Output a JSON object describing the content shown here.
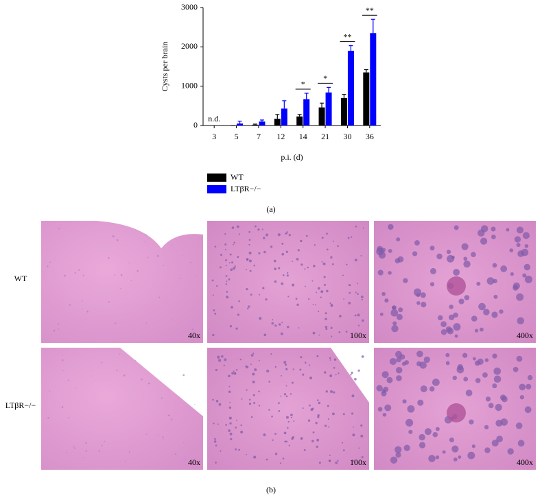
{
  "chart_data": {
    "type": "bar",
    "ylabel": "Cysts per brain",
    "xlabel": "p.i. (d)",
    "categories": [
      "3",
      "5",
      "7",
      "12",
      "14",
      "21",
      "30",
      "36"
    ],
    "series": [
      {
        "name": "WT",
        "color": "#000000",
        "values": [
          null,
          0,
          20,
          170,
          230,
          460,
          700,
          1350
        ],
        "error": [
          null,
          0,
          15,
          110,
          50,
          110,
          90,
          70
        ]
      },
      {
        "name": "LTβR−/−",
        "color": "#0000ff",
        "values": [
          null,
          50,
          100,
          430,
          670,
          840,
          1900,
          2350
        ],
        "error": [
          null,
          60,
          40,
          200,
          150,
          130,
          130,
          350
        ]
      }
    ],
    "ylim": [
      0,
      3000
    ],
    "yticks": [
      0,
      1000,
      2000,
      3000
    ],
    "annotations": [
      {
        "text": "n.d.",
        "category": "3"
      },
      {
        "text": "*",
        "category": "14"
      },
      {
        "text": "*",
        "category": "21"
      },
      {
        "text": "**",
        "category": "30"
      },
      {
        "text": "**",
        "category": "36"
      }
    ],
    "legend": "bottom-left"
  },
  "figure": {
    "panel_a_label": "(a)",
    "panel_b_label": "(b)",
    "rows": [
      {
        "label": "WT",
        "magnifications": [
          "40x",
          "100x",
          "400x"
        ]
      },
      {
        "label": "LTβR−/−",
        "magnifications": [
          "40x",
          "100x",
          "400x"
        ]
      }
    ]
  }
}
